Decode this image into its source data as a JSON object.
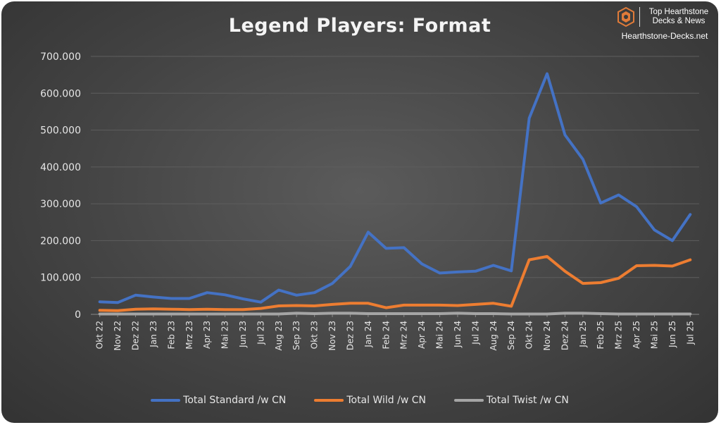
{
  "brand": {
    "line1": "Top Hearthstone",
    "line2": "Decks & News",
    "site": "Hearthstone-Decks.net",
    "logo_icon": "hexagon-h-logo-icon",
    "logo_color": "#e07b39"
  },
  "chart_data": {
    "type": "line",
    "title": "Legend Players: Format",
    "xlabel": "",
    "ylabel": "",
    "ylim": [
      0,
      700000
    ],
    "yticks": [
      0,
      100000,
      200000,
      300000,
      400000,
      500000,
      600000,
      700000
    ],
    "ytick_labels": [
      "0",
      "100.000",
      "200.000",
      "300.000",
      "400.000",
      "500.000",
      "600.000",
      "700.000"
    ],
    "grid": true,
    "legend_position": "bottom",
    "background": "#444444",
    "categories": [
      "Okt 22",
      "Nov 22",
      "Dez 22",
      "Jan 23",
      "Feb 23",
      "Mrz 23",
      "Apr 23",
      "Mai 23",
      "Jun 23",
      "Jul 23",
      "Aug 23",
      "Sep 23",
      "Okt 23",
      "Nov 23",
      "Dez 23",
      "Jan 24",
      "Feb 24",
      "Mrz 24",
      "Apr 24",
      "Mai 24",
      "Jun 24",
      "Jul 24",
      "Aug 24",
      "Sep 24",
      "Okt 24",
      "Nov 24",
      "Dez 24",
      "Jan 25",
      "Feb 25",
      "Mrz 25",
      "Apr 25",
      "Mai 25",
      "Jun 25",
      "Jul 25"
    ],
    "series": [
      {
        "name": "Total Standard /w CN",
        "color": "#4472c4",
        "values": [
          34000,
          32000,
          52000,
          47000,
          43000,
          43000,
          59000,
          53000,
          42000,
          33000,
          66000,
          52000,
          59000,
          84000,
          130000,
          223000,
          179000,
          181000,
          137000,
          112000,
          115000,
          117000,
          133000,
          118000,
          532000,
          653000,
          487000,
          421000,
          302000,
          324000,
          292000,
          229000,
          200000,
          271000
        ]
      },
      {
        "name": "Total Wild /w CN",
        "color": "#ed7d31",
        "values": [
          11000,
          10000,
          14000,
          15000,
          14000,
          13000,
          14000,
          13000,
          13000,
          16000,
          23000,
          24000,
          23000,
          27000,
          30000,
          30000,
          18000,
          25000,
          25000,
          25000,
          24000,
          27000,
          30000,
          22000,
          148000,
          157000,
          117000,
          84000,
          86000,
          98000,
          132000,
          133000,
          131000,
          148000
        ]
      },
      {
        "name": "Total Twist /w CN",
        "color": "#a5a5a5",
        "values": [
          1000,
          1000,
          1000,
          1000,
          1000,
          1000,
          1000,
          1000,
          1000,
          1000,
          1000,
          3000,
          2000,
          3000,
          3000,
          2000,
          2000,
          2000,
          2000,
          2000,
          3000,
          2000,
          2000,
          1000,
          1000,
          1000,
          3000,
          3000,
          2000,
          1000,
          1000,
          1000,
          1000,
          1000
        ]
      }
    ]
  }
}
